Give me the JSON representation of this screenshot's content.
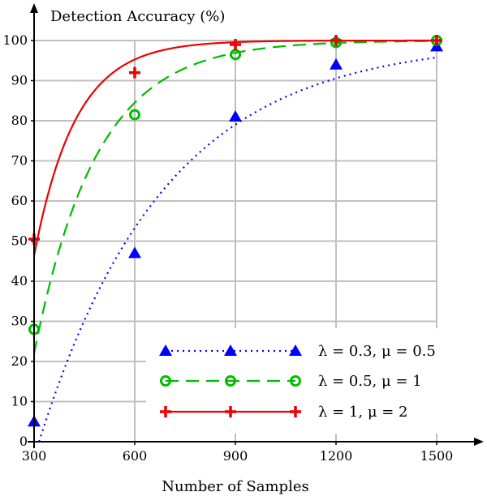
{
  "chart_data": {
    "type": "line",
    "title": "",
    "ylabel": "Detection Accuracy (%)",
    "xlabel": "Number of Samples",
    "x_ticks": [
      300,
      600,
      900,
      1200,
      1500
    ],
    "y_ticks": [
      0,
      10,
      20,
      30,
      40,
      50,
      60,
      70,
      80,
      90,
      100
    ],
    "xlim": [
      300,
      1500
    ],
    "ylim": [
      0,
      100
    ],
    "grid": true,
    "legend_position": "bottom-right",
    "series": [
      {
        "name": "λ = 0.3, μ = 0.5",
        "color": "#0000ff",
        "line_style": "dotted",
        "marker": "triangle",
        "x": [
          300,
          600,
          900,
          1200,
          1500
        ],
        "y": [
          5,
          47,
          81,
          94,
          98.5
        ],
        "curve": {
          "a": 0.00267,
          "x0": 315
        }
      },
      {
        "name": "λ = 0.5, μ = 1",
        "color": "#00bb00",
        "line_style": "dashed",
        "marker": "circle",
        "x": [
          300,
          600,
          900,
          1200,
          1500
        ],
        "y": [
          28,
          81.5,
          96.5,
          99.5,
          100
        ],
        "curve": {
          "a": 0.00539,
          "x0": 254
        }
      },
      {
        "name": "λ = 1, μ = 2",
        "color": "#ee0000",
        "line_style": "solid",
        "marker": "plus",
        "x": [
          300,
          600,
          900,
          1200,
          1500
        ],
        "y": [
          50.5,
          92,
          99,
          100,
          100
        ],
        "curve": {
          "a": 0.00809,
          "x0": 223
        }
      }
    ]
  }
}
